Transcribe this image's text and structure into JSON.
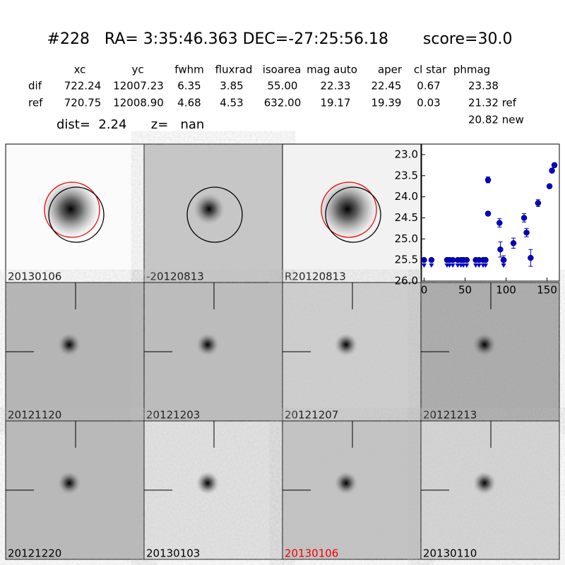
{
  "header": {
    "title": "#228   RA= 3:35:46.363 DEC=-27:25:56.18       score=30.0"
  },
  "table": {
    "columns": [
      "xc",
      "yc",
      "fwhm",
      "fluxrad",
      "isoarea",
      "mag auto",
      "aper",
      "cl star",
      "phmag"
    ],
    "rows": [
      [
        "dif",
        "722.24",
        "12007.23",
        "6.35",
        "3.85",
        "55.00",
        "22.33",
        "22.45",
        "0.67",
        "23.38"
      ],
      [
        "ref",
        "720.75",
        "12008.90",
        "4.68",
        "4.53",
        "632.00",
        "19.17",
        "19.39",
        "0.03",
        "21.32 ref"
      ]
    ],
    "extra": "20.82 new"
  },
  "dist_line": "dist=  2.24      z=   nan",
  "stamps": {
    "labels": [
      "20130106",
      "-20120813",
      "R20120813",
      "20121120",
      "20121203",
      "20121207",
      "20121213",
      "20121220",
      "20130103",
      "20130106",
      "20130110"
    ]
  },
  "chart_data": {
    "type": "scatter",
    "xlim": [
      -3,
      165
    ],
    "ylim": [
      26.0,
      22.75
    ],
    "xticks": [
      0,
      50,
      100,
      150
    ],
    "yticks": [
      {
        "value": 23.0,
        "label": "23.0"
      },
      {
        "value": 23.5,
        "label": "23.5"
      },
      {
        "value": 24.0,
        "label": "24.0"
      },
      {
        "value": 24.5,
        "label": "24.5"
      },
      {
        "value": 25.0,
        "label": "25.0"
      },
      {
        "value": 25.5,
        "label": "25.5"
      },
      {
        "value": 26.0,
        "label": "26.0"
      }
    ],
    "detections": {
      "color": "#0000cc",
      "x": [
        78,
        78,
        92,
        93,
        97,
        109,
        122,
        125,
        130,
        139,
        153,
        156,
        159
      ],
      "values": [
        23.6,
        24.4,
        24.62,
        25.25,
        25.5,
        25.1,
        24.5,
        24.85,
        25.45,
        24.15,
        23.75,
        23.38,
        23.25
      ],
      "errors": [
        0.07,
        0.05,
        0.1,
        0.18,
        0.1,
        0.12,
        0.1,
        0.1,
        0.2,
        0.08,
        0.04,
        0.05,
        0.05
      ]
    },
    "limits": {
      "color": "#0000cc",
      "x": [
        0,
        9,
        28,
        31,
        35,
        41,
        45,
        48,
        52,
        63,
        67,
        72,
        75,
        97
      ],
      "values": [
        25.5,
        25.5,
        25.5,
        25.5,
        25.5,
        25.5,
        25.5,
        25.5,
        25.5,
        25.5,
        25.5,
        25.5,
        25.5,
        25.5
      ]
    }
  }
}
